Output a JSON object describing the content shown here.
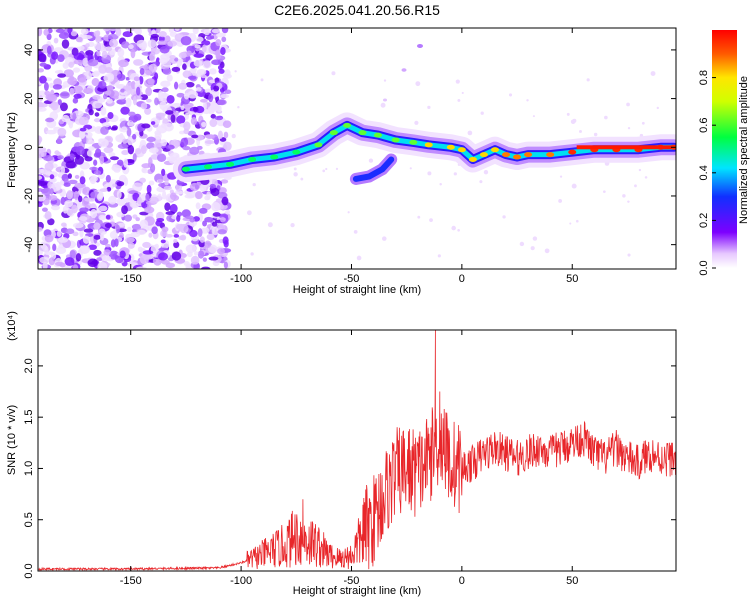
{
  "title": "C2E6.2025.041.20.56.R15",
  "colors": {
    "snr_line": "#e8262a",
    "frame": "#000000",
    "blob_base": "#6a00e0"
  },
  "chart_data": [
    {
      "type": "heatmap",
      "xlabel": "Height of straight line (km)",
      "ylabel": "Frequency (Hz)",
      "xlim": [
        -192,
        97
      ],
      "ylim": [
        -50,
        49
      ],
      "x_ticks": [
        -150,
        -100,
        -50,
        0,
        50
      ],
      "y_ticks": [
        -40,
        -20,
        0,
        20,
        40
      ],
      "x_tick_labels": [
        "-150",
        "-100",
        "-50",
        "0",
        "50"
      ],
      "y_tick_labels": [
        "-40",
        "-20",
        "0",
        "20",
        "40"
      ],
      "colorbar": {
        "label": "Normalized spectral amplitude",
        "ticks": [
          0.0,
          0.2,
          0.4,
          0.6,
          0.8
        ],
        "tick_labels": [
          "0.0",
          "0.2",
          "0.4",
          "0.6",
          "0.8"
        ],
        "range": [
          0,
          1
        ],
        "colormap": "rainbow (white-violet-blue-cyan-green-yellow-red)"
      },
      "ridge": {
        "description": "frequency of the dominant spectral peak vs height",
        "x": [
          -125,
          -115,
          -105,
          -95,
          -85,
          -75,
          -65,
          -58,
          -52,
          -45,
          -38,
          -30,
          -22,
          -15,
          -5,
          0,
          5,
          10,
          15,
          20,
          25,
          30,
          40,
          50,
          60,
          70,
          80,
          90,
          96
        ],
        "y": [
          -9,
          -8,
          -7,
          -5,
          -4,
          -2,
          1,
          6,
          9,
          6,
          5,
          3,
          2,
          1,
          0,
          -1,
          -5,
          -3,
          -1,
          -3,
          -4,
          -3,
          -3,
          -2,
          -1,
          -1,
          -1,
          0,
          0
        ]
      }
    },
    {
      "type": "line",
      "xlabel": "Height of straight line (km)",
      "ylabel": "SNR (10 * v/v)",
      "y_scale_label": "(x10⁴)",
      "xlim": [
        -192,
        97
      ],
      "ylim": [
        0,
        2.35
      ],
      "x_ticks": [
        -150,
        -100,
        -50,
        0,
        50
      ],
      "y_ticks": [
        0.0,
        0.5,
        1.0,
        1.5,
        2.0
      ],
      "x_tick_labels": [
        "-150",
        "-100",
        "-50",
        "0",
        "50"
      ],
      "y_tick_labels": [
        "0.0",
        "0.5",
        "1.0",
        "1.5",
        "2.0"
      ],
      "series": [
        {
          "x": [
            -192,
            -150,
            -110,
            -100,
            -95,
            -88,
            -80,
            -75,
            -70,
            -65,
            -60,
            -55,
            -50,
            -45,
            -40,
            -35,
            -30,
            -25,
            -20,
            -15,
            -12,
            -10,
            -8,
            -5,
            0,
            5,
            10,
            15,
            20,
            25,
            30,
            35,
            40,
            45,
            50,
            55,
            60,
            65,
            70,
            75,
            80,
            85,
            90,
            97
          ],
          "y": [
            0.02,
            0.02,
            0.03,
            0.08,
            0.12,
            0.18,
            0.25,
            0.35,
            0.3,
            0.25,
            0.15,
            0.12,
            0.15,
            0.35,
            0.5,
            0.75,
            0.95,
            1.0,
            0.95,
            1.1,
            1.2,
            1.3,
            1.2,
            1.05,
            1.0,
            1.05,
            1.15,
            1.2,
            1.15,
            1.1,
            1.15,
            1.2,
            1.15,
            1.2,
            1.25,
            1.3,
            1.15,
            1.1,
            1.2,
            1.1,
            1.05,
            1.15,
            1.1,
            1.1
          ]
        }
      ]
    }
  ]
}
